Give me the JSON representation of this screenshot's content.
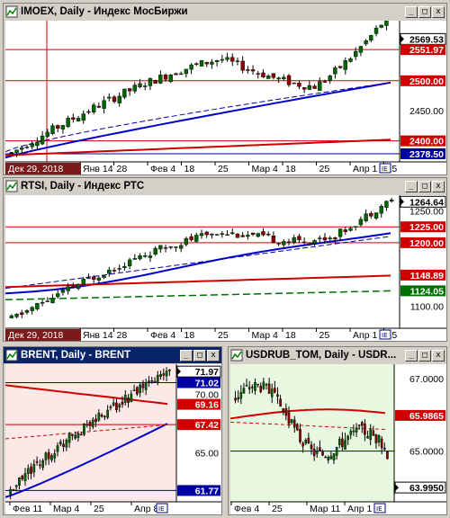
{
  "windows": [
    {
      "id": "imoex",
      "title": "IMOEX, Daily - Индекс МосБиржи",
      "bg": "#ffffff",
      "date_label": "Дек 29, 2018",
      "axis_labels": [
        "Янв 14",
        "28",
        "Фев 4",
        "18",
        "25",
        "Мар 4",
        "18",
        "25",
        "Апр 1",
        "15"
      ],
      "price_labels": [
        {
          "text": "2569.53",
          "style": "last"
        },
        {
          "text": "2551.97",
          "style": "red"
        },
        {
          "text": "2500.00",
          "style": "red"
        },
        {
          "text": "2450.00",
          "style": "plain"
        },
        {
          "text": "2400.00",
          "style": "red"
        },
        {
          "text": "2378.50",
          "style": "blue"
        }
      ]
    },
    {
      "id": "rtsi",
      "title": "RTSI, Daily - Индекс РТС",
      "bg": "#ffffff",
      "date_label": "Дек 29, 2018",
      "axis_labels": [
        "Янв 14",
        "28",
        "Фев 4",
        "18",
        "25",
        "Мар 4",
        "18",
        "25",
        "Апр 1",
        "15"
      ],
      "price_labels": [
        {
          "text": "1264.64",
          "style": "last"
        },
        {
          "text": "1250.00",
          "style": "plain"
        },
        {
          "text": "1225.00",
          "style": "red"
        },
        {
          "text": "1200.00",
          "style": "red"
        },
        {
          "text": "1148.89",
          "style": "red"
        },
        {
          "text": "1124.05",
          "style": "green"
        },
        {
          "text": "1100.00",
          "style": "plain"
        }
      ]
    },
    {
      "id": "brent",
      "title": "BRENT, Daily - BRENT",
      "bg": "#fde8e8",
      "axis_labels": [
        "Фев 11",
        "Мар 4",
        "25",
        "Апр 8"
      ],
      "price_labels": [
        {
          "text": "71.97",
          "style": "last"
        },
        {
          "text": "71.02",
          "style": "blue"
        },
        {
          "text": "70.00",
          "style": "plain"
        },
        {
          "text": "69.16",
          "style": "red"
        },
        {
          "text": "67.42",
          "style": "red"
        },
        {
          "text": "65.00",
          "style": "plain"
        },
        {
          "text": "61.77",
          "style": "blue"
        }
      ]
    },
    {
      "id": "usdrub",
      "title": "USDRUB_TOM, Daily - USDR...",
      "bg": "#e8f8e0",
      "axis_labels": [
        "Фев 4",
        "25",
        "Мар 11",
        "Апр 1"
      ],
      "price_labels": [
        {
          "text": "67.0000",
          "style": "plain"
        },
        {
          "text": "65.9865",
          "style": "red"
        },
        {
          "text": "65.0000",
          "style": "plain"
        },
        {
          "text": "63.9950",
          "style": "last"
        }
      ]
    }
  ],
  "controls": {
    "minimize": "_",
    "maximize": "□",
    "close": "x"
  },
  "colors": {
    "red_line": "#d00000",
    "blue_ma": "#0000cc",
    "green_ma": "#007000",
    "candle_up": "#006400",
    "candle_down": "#8b0000",
    "date_bg": "#7a1a1a",
    "blue_badge": "#0000a0"
  }
}
